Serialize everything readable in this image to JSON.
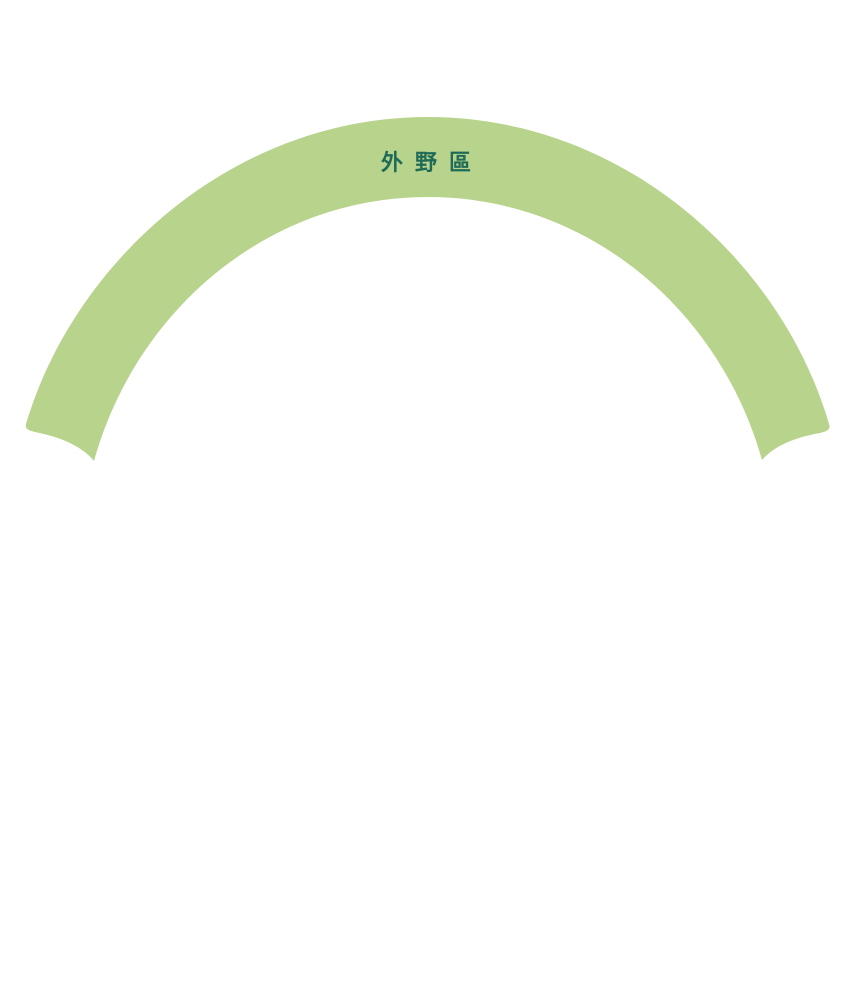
{
  "outfield_zone": {
    "label": "外野區",
    "fill_color": "#b8d38c",
    "text_color": "#1f6b57"
  }
}
